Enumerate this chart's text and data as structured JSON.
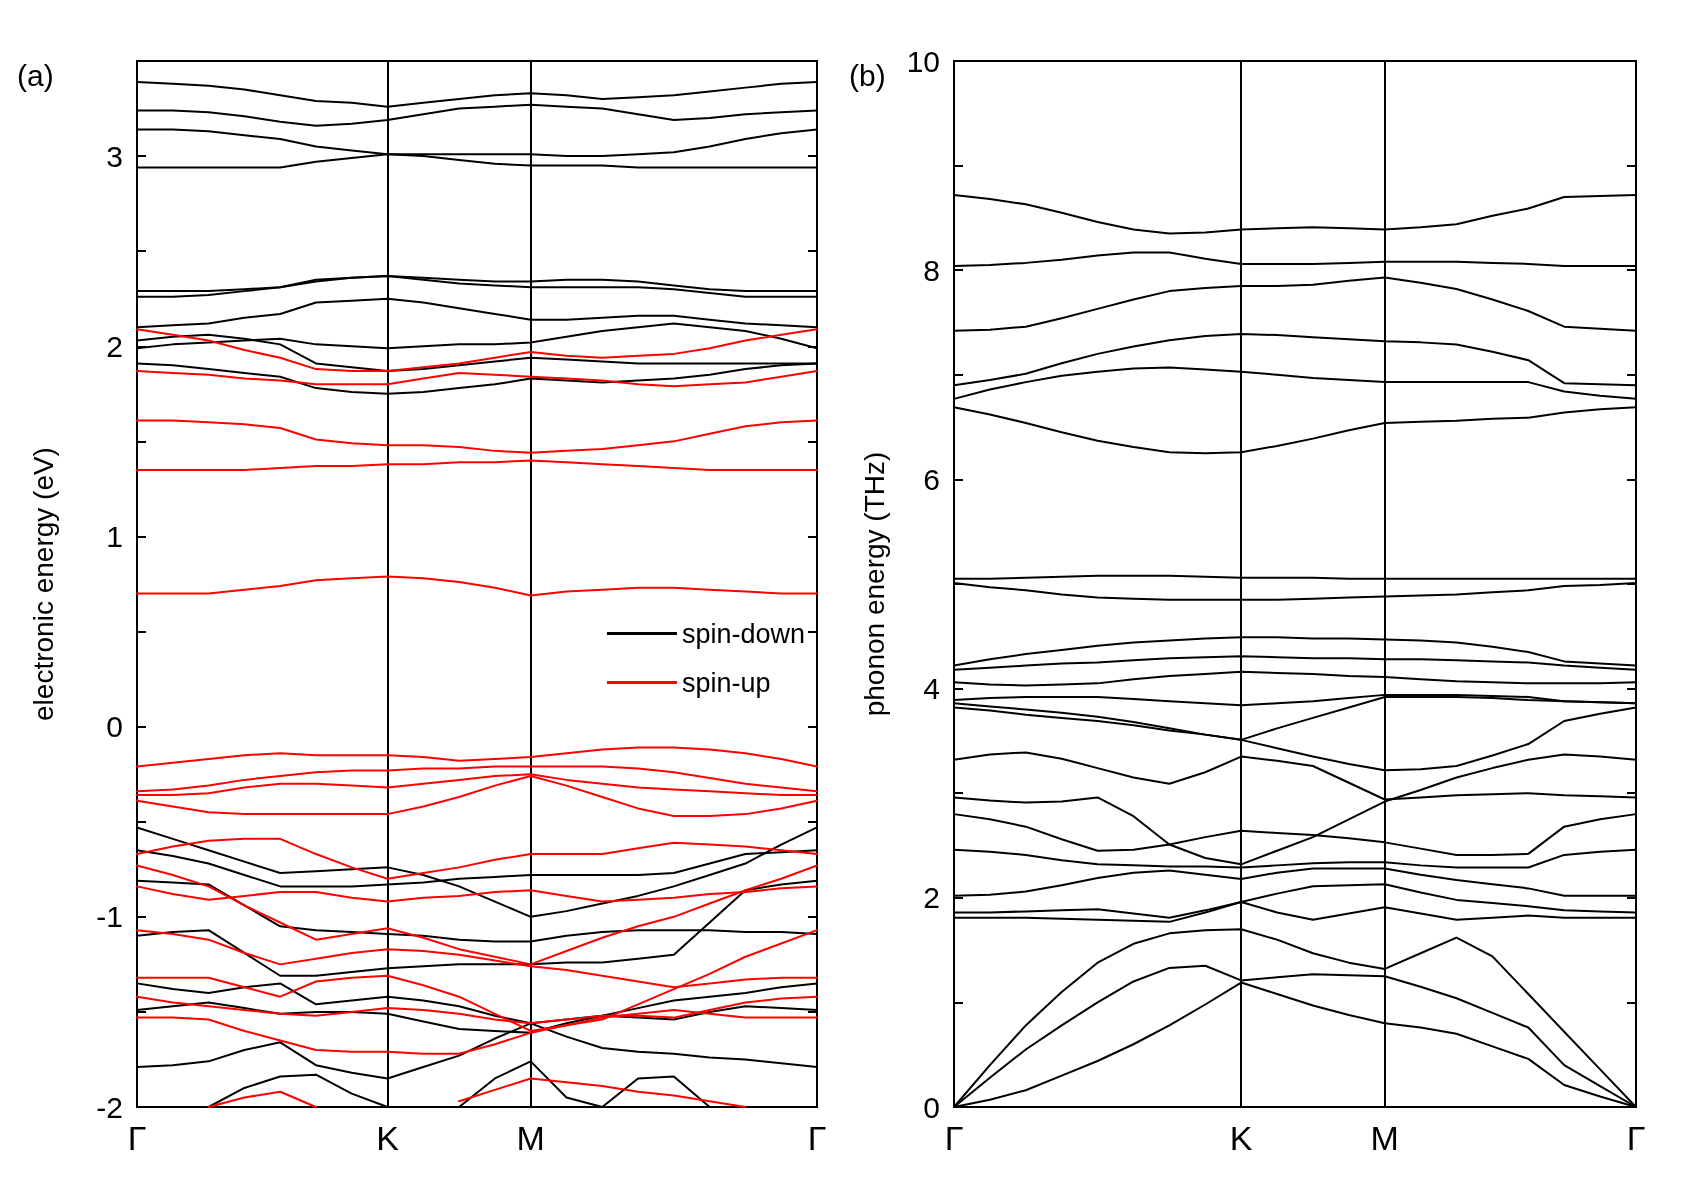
{
  "chart_data": [
    {
      "type": "line",
      "title": "(a)",
      "ylabel": "electronic energy (eV)",
      "categories": [
        "Γ",
        null,
        null,
        null,
        null,
        null,
        null,
        "K",
        null,
        null,
        null,
        "M",
        null,
        null,
        null,
        null,
        null,
        null,
        null,
        "Γ"
      ],
      "ylim": [
        -2,
        3.5
      ],
      "yticks": [
        -2,
        {
          "value": -1.5,
          "label": null
        },
        -1,
        {
          "value": -0.5,
          "label": null
        },
        0,
        {
          "value": 0.5,
          "label": null
        },
        1,
        {
          "value": 1.5,
          "label": null
        },
        2,
        {
          "value": 2.5,
          "label": null
        },
        3
      ],
      "grid": "x",
      "legend": "right",
      "marker": "none",
      "series": [
        {
          "name": "spin-down",
          "color": "#000000",
          "values": [
            3.39,
            3.38,
            3.37,
            3.35,
            3.32,
            3.29,
            3.28,
            3.26,
            3.28,
            3.3,
            3.32,
            3.33,
            3.32,
            3.3,
            3.31,
            3.32,
            3.34,
            3.36,
            3.38,
            3.39
          ]
        },
        {
          "color": "#000000",
          "values": [
            3.24,
            3.24,
            3.23,
            3.21,
            3.18,
            3.16,
            3.17,
            3.19,
            3.22,
            3.25,
            3.26,
            3.27,
            3.26,
            3.25,
            3.22,
            3.19,
            3.2,
            3.22,
            3.23,
            3.24
          ]
        },
        {
          "color": "#000000",
          "values": [
            3.14,
            3.14,
            3.13,
            3.11,
            3.09,
            3.05,
            3.03,
            3.01,
            3.0,
            2.98,
            2.96,
            2.95,
            2.95,
            2.95,
            2.94,
            2.94,
            2.94,
            2.94,
            2.94,
            2.94
          ]
        },
        {
          "color": "#000000",
          "values": [
            2.94,
            2.94,
            2.94,
            2.94,
            2.94,
            2.97,
            2.99,
            3.01,
            3.01,
            3.01,
            3.01,
            3.01,
            3.0,
            3.0,
            3.01,
            3.02,
            3.05,
            3.09,
            3.12,
            3.14
          ]
        },
        {
          "color": "#000000",
          "values": [
            2.29,
            2.29,
            2.29,
            2.3,
            2.31,
            2.34,
            2.36,
            2.37,
            2.36,
            2.35,
            2.34,
            2.34,
            2.35,
            2.35,
            2.34,
            2.32,
            2.3,
            2.29,
            2.29,
            2.29
          ]
        },
        {
          "color": "#000000",
          "values": [
            2.26,
            2.26,
            2.27,
            2.29,
            2.31,
            2.35,
            2.36,
            2.37,
            2.35,
            2.33,
            2.32,
            2.31,
            2.31,
            2.31,
            2.31,
            2.3,
            2.28,
            2.26,
            2.26,
            2.26
          ]
        },
        {
          "color": "#000000",
          "values": [
            2.1,
            2.11,
            2.12,
            2.15,
            2.17,
            2.23,
            2.24,
            2.25,
            2.23,
            2.2,
            2.17,
            2.14,
            2.14,
            2.15,
            2.16,
            2.16,
            2.14,
            2.12,
            2.11,
            2.1
          ]
        },
        {
          "color": "#000000",
          "values": [
            2.03,
            2.05,
            2.06,
            2.04,
            2.01,
            1.91,
            1.89,
            1.87,
            1.88,
            1.9,
            1.92,
            1.94,
            1.93,
            1.92,
            1.91,
            1.91,
            1.91,
            1.91,
            1.91,
            1.91
          ]
        },
        {
          "color": "#000000",
          "values": [
            1.99,
            2.01,
            2.02,
            2.03,
            2.04,
            2.01,
            2.0,
            1.99,
            2.0,
            2.01,
            2.01,
            2.02,
            2.05,
            2.08,
            2.1,
            2.12,
            2.1,
            2.08,
            2.04,
            1.99
          ]
        },
        {
          "color": "#000000",
          "values": [
            1.91,
            1.9,
            1.88,
            1.86,
            1.84,
            1.78,
            1.76,
            1.75,
            1.76,
            1.78,
            1.8,
            1.83,
            1.82,
            1.81,
            1.82,
            1.83,
            1.85,
            1.88,
            1.9,
            1.91
          ]
        },
        {
          "color": "#000000",
          "values": [
            -0.53,
            -0.59,
            -0.65,
            -0.71,
            -0.77,
            -0.76,
            -0.75,
            -0.74,
            -0.78,
            -0.84,
            -0.92,
            -1.0,
            -0.97,
            -0.93,
            -0.89,
            -0.84,
            -0.78,
            -0.72,
            -0.62,
            -0.53
          ]
        },
        {
          "color": "#000000",
          "values": [
            -0.65,
            -0.68,
            -0.72,
            -0.78,
            -0.84,
            -0.84,
            -0.84,
            -0.83,
            -0.82,
            -0.8,
            -0.79,
            -0.78,
            -0.78,
            -0.78,
            -0.78,
            -0.77,
            -0.72,
            -0.67,
            -0.66,
            -0.65
          ]
        },
        {
          "color": "#000000",
          "values": [
            -0.81,
            -0.82,
            -0.83,
            -0.94,
            -1.05,
            -1.07,
            -1.08,
            -1.09,
            -1.1,
            -1.12,
            -1.13,
            -1.13,
            -1.1,
            -1.08,
            -1.07,
            -1.07,
            -1.07,
            -1.08,
            -1.08,
            -1.09
          ]
        },
        {
          "color": "#000000",
          "values": [
            -1.1,
            -1.08,
            -1.07,
            -1.19,
            -1.31,
            -1.31,
            -1.29,
            -1.27,
            -1.26,
            -1.25,
            -1.25,
            -1.25,
            -1.24,
            -1.24,
            -1.22,
            -1.2,
            -1.03,
            -0.86,
            -0.83,
            -0.81
          ]
        },
        {
          "color": "#000000",
          "values": [
            -1.35,
            -1.38,
            -1.4,
            -1.37,
            -1.35,
            -1.46,
            -1.44,
            -1.42,
            -1.44,
            -1.47,
            -1.52,
            -1.56,
            -1.54,
            -1.52,
            -1.48,
            -1.44,
            -1.42,
            -1.4,
            -1.37,
            -1.35
          ]
        },
        {
          "color": "#000000",
          "values": [
            -1.49,
            -1.47,
            -1.45,
            -1.48,
            -1.51,
            -1.5,
            -1.5,
            -1.51,
            -1.55,
            -1.59,
            -1.6,
            -1.61,
            -1.56,
            -1.52,
            -1.53,
            -1.54,
            -1.5,
            -1.47,
            -1.48,
            -1.49
          ]
        },
        {
          "color": "#000000",
          "values": [
            -1.79,
            -1.78,
            -1.76,
            -1.7,
            -1.66,
            -1.78,
            -1.82,
            -1.85,
            -1.79,
            -1.73,
            -1.64,
            -1.56,
            -1.63,
            -1.69,
            -1.71,
            -1.72,
            -1.74,
            -1.75,
            -1.77,
            -1.79
          ]
        },
        {
          "color": "#000000",
          "values": [
            null,
            null,
            -2.0,
            -1.9,
            -1.84,
            -1.83,
            -1.93,
            -2.0,
            null,
            null,
            null,
            null,
            null,
            null,
            null,
            null,
            null,
            null,
            null,
            null
          ]
        },
        {
          "color": "#000000",
          "values": [
            null,
            null,
            null,
            null,
            null,
            null,
            null,
            null,
            null,
            -2.0,
            -1.85,
            -1.76,
            -1.95,
            -2.0,
            -1.85,
            -1.84,
            -2.0,
            null,
            null,
            null
          ]
        },
        {
          "name": "spin-up",
          "color": "#ff0000",
          "values": [
            2.09,
            2.06,
            2.03,
            1.98,
            1.94,
            1.88,
            1.87,
            1.87,
            1.89,
            1.91,
            1.94,
            1.97,
            1.95,
            1.94,
            1.95,
            1.96,
            1.99,
            2.03,
            2.06,
            2.09
          ]
        },
        {
          "color": "#ff0000",
          "values": [
            1.87,
            1.86,
            1.85,
            1.83,
            1.82,
            1.8,
            1.8,
            1.8,
            1.83,
            1.86,
            1.85,
            1.84,
            1.83,
            1.82,
            1.8,
            1.79,
            1.8,
            1.81,
            1.84,
            1.87
          ]
        },
        {
          "color": "#ff0000",
          "values": [
            1.61,
            1.61,
            1.6,
            1.59,
            1.57,
            1.51,
            1.49,
            1.48,
            1.48,
            1.47,
            1.45,
            1.44,
            1.45,
            1.46,
            1.48,
            1.5,
            1.54,
            1.58,
            1.6,
            1.61
          ]
        },
        {
          "color": "#ff0000",
          "values": [
            1.35,
            1.35,
            1.35,
            1.35,
            1.36,
            1.37,
            1.37,
            1.38,
            1.38,
            1.39,
            1.39,
            1.4,
            1.39,
            1.38,
            1.37,
            1.36,
            1.35,
            1.35,
            1.35,
            1.35
          ]
        },
        {
          "color": "#ff0000",
          "values": [
            0.7,
            0.7,
            0.7,
            0.72,
            0.74,
            0.77,
            0.78,
            0.79,
            0.78,
            0.76,
            0.73,
            0.69,
            0.71,
            0.72,
            0.73,
            0.73,
            0.72,
            0.71,
            0.7,
            0.7
          ]
        },
        {
          "color": "#ff0000",
          "values": [
            -0.21,
            -0.19,
            -0.17,
            -0.15,
            -0.14,
            -0.15,
            -0.15,
            -0.15,
            -0.16,
            -0.18,
            -0.17,
            -0.16,
            -0.14,
            -0.12,
            -0.11,
            -0.11,
            -0.12,
            -0.14,
            -0.17,
            -0.21
          ]
        },
        {
          "color": "#ff0000",
          "values": [
            -0.34,
            -0.33,
            -0.31,
            -0.28,
            -0.26,
            -0.24,
            -0.23,
            -0.23,
            -0.22,
            -0.22,
            -0.21,
            -0.21,
            -0.21,
            -0.21,
            -0.22,
            -0.24,
            -0.27,
            -0.3,
            -0.32,
            -0.34
          ]
        },
        {
          "color": "#ff0000",
          "values": [
            -0.36,
            -0.36,
            -0.35,
            -0.32,
            -0.3,
            -0.3,
            -0.31,
            -0.32,
            -0.3,
            -0.28,
            -0.26,
            -0.25,
            -0.28,
            -0.3,
            -0.32,
            -0.33,
            -0.34,
            -0.35,
            -0.36,
            -0.36
          ]
        },
        {
          "color": "#ff0000",
          "values": [
            -0.39,
            -0.42,
            -0.45,
            -0.46,
            -0.46,
            -0.46,
            -0.46,
            -0.46,
            -0.42,
            -0.37,
            -0.31,
            -0.26,
            -0.31,
            -0.37,
            -0.43,
            -0.47,
            -0.47,
            -0.46,
            -0.43,
            -0.39
          ]
        },
        {
          "color": "#ff0000",
          "values": [
            -0.67,
            -0.63,
            -0.6,
            -0.59,
            -0.59,
            -0.67,
            -0.74,
            -0.8,
            -0.77,
            -0.74,
            -0.7,
            -0.67,
            -0.67,
            -0.67,
            -0.64,
            -0.61,
            -0.62,
            -0.63,
            -0.65,
            -0.67
          ]
        },
        {
          "color": "#ff0000",
          "values": [
            -0.73,
            -0.78,
            -0.84,
            -0.94,
            -1.03,
            -1.12,
            -1.09,
            -1.06,
            -1.11,
            -1.17,
            -1.21,
            -1.25,
            -1.18,
            -1.11,
            -1.05,
            -1.0,
            -0.93,
            -0.86,
            -0.8,
            -0.73
          ]
        },
        {
          "color": "#ff0000",
          "values": [
            -0.84,
            -0.88,
            -0.91,
            -0.89,
            -0.87,
            -0.87,
            -0.9,
            -0.92,
            -0.9,
            -0.89,
            -0.87,
            -0.86,
            -0.89,
            -0.92,
            -0.91,
            -0.9,
            -0.88,
            -0.87,
            -0.85,
            -0.84
          ]
        },
        {
          "color": "#ff0000",
          "values": [
            -1.07,
            -1.09,
            -1.12,
            -1.19,
            -1.25,
            -1.22,
            -1.19,
            -1.17,
            -1.18,
            -1.2,
            -1.23,
            -1.26,
            -1.28,
            -1.31,
            -1.34,
            -1.37,
            -1.35,
            -1.33,
            -1.32,
            -1.32
          ]
        },
        {
          "color": "#ff0000",
          "values": [
            -1.32,
            -1.32,
            -1.32,
            -1.37,
            -1.42,
            -1.34,
            -1.32,
            -1.31,
            -1.36,
            -1.42,
            -1.51,
            -1.6,
            -1.57,
            -1.54,
            -1.46,
            -1.38,
            -1.3,
            -1.21,
            -1.14,
            -1.07
          ]
        },
        {
          "color": "#ff0000",
          "values": [
            -1.42,
            -1.45,
            -1.47,
            -1.49,
            -1.51,
            -1.52,
            -1.5,
            -1.48,
            -1.49,
            -1.51,
            -1.54,
            -1.56,
            -1.54,
            -1.52,
            -1.52,
            -1.53,
            -1.49,
            -1.45,
            -1.43,
            -1.42
          ]
        },
        {
          "color": "#ff0000",
          "values": [
            -1.53,
            -1.53,
            -1.54,
            -1.6,
            -1.65,
            -1.7,
            -1.71,
            -1.71,
            -1.72,
            -1.72,
            -1.67,
            -1.61,
            -1.57,
            -1.53,
            -1.51,
            -1.49,
            -1.51,
            -1.53,
            -1.53,
            -1.53
          ]
        },
        {
          "color": "#ff0000",
          "values": [
            null,
            null,
            null,
            null,
            null,
            null,
            null,
            null,
            null,
            -1.97,
            -1.91,
            -1.85,
            -1.87,
            -1.89,
            -1.92,
            -1.94,
            -1.97,
            -2.0,
            null,
            null
          ]
        },
        {
          "color": "#ff0000",
          "values": [
            null,
            null,
            -2.0,
            -1.95,
            -1.92,
            -2.0,
            null,
            null,
            null,
            null,
            null,
            null,
            null,
            null,
            null,
            null,
            null,
            null,
            null,
            null
          ]
        }
      ]
    },
    {
      "type": "line",
      "title": "(b)",
      "ylabel": "phonon energy (THz)",
      "categories": [
        "Γ",
        null,
        null,
        null,
        null,
        null,
        null,
        null,
        "K",
        null,
        null,
        null,
        "M",
        null,
        null,
        null,
        null,
        null,
        null,
        "Γ"
      ],
      "ylim": [
        0,
        10
      ],
      "yticks": [
        0,
        {
          "value": 1,
          "label": null
        },
        2,
        {
          "value": 3,
          "label": null
        },
        4,
        {
          "value": 5,
          "label": null
        },
        6,
        {
          "value": 7,
          "label": null
        },
        8,
        {
          "value": 9,
          "label": null
        },
        10
      ],
      "grid": "x",
      "marker": "none",
      "series": [
        {
          "color": "#000000",
          "values": [
            8.72,
            8.68,
            8.63,
            8.55,
            8.46,
            8.39,
            8.35,
            8.36,
            8.39,
            8.4,
            8.41,
            8.4,
            8.39,
            8.41,
            8.44,
            8.52,
            8.59,
            8.7,
            8.71,
            8.72
          ]
        },
        {
          "color": "#000000",
          "values": [
            8.04,
            8.05,
            8.07,
            8.1,
            8.14,
            8.17,
            8.17,
            8.11,
            8.06,
            8.06,
            8.06,
            8.07,
            8.08,
            8.08,
            8.08,
            8.07,
            8.06,
            8.04,
            8.04,
            8.04
          ]
        },
        {
          "color": "#000000",
          "values": [
            7.42,
            7.43,
            7.46,
            7.54,
            7.63,
            7.72,
            7.8,
            7.83,
            7.85,
            7.85,
            7.86,
            7.9,
            7.93,
            7.88,
            7.82,
            7.72,
            7.61,
            7.46,
            7.44,
            7.42
          ]
        },
        {
          "color": "#000000",
          "values": [
            6.9,
            6.95,
            7.01,
            7.11,
            7.2,
            7.27,
            7.33,
            7.37,
            7.39,
            7.38,
            7.36,
            7.34,
            7.32,
            7.31,
            7.29,
            7.22,
            7.14,
            6.92,
            6.91,
            6.9
          ]
        },
        {
          "color": "#000000",
          "values": [
            6.77,
            6.86,
            6.93,
            6.99,
            7.03,
            7.06,
            7.07,
            7.05,
            7.03,
            7.0,
            6.97,
            6.95,
            6.93,
            6.93,
            6.93,
            6.93,
            6.93,
            6.84,
            6.8,
            6.77
          ]
        },
        {
          "color": "#000000",
          "values": [
            6.69,
            6.62,
            6.54,
            6.45,
            6.37,
            6.31,
            6.26,
            6.25,
            6.26,
            6.32,
            6.39,
            6.47,
            6.54,
            6.55,
            6.56,
            6.58,
            6.59,
            6.64,
            6.67,
            6.69
          ]
        },
        {
          "color": "#000000",
          "values": [
            5.05,
            5.05,
            5.06,
            5.07,
            5.08,
            5.08,
            5.08,
            5.07,
            5.06,
            5.06,
            5.06,
            5.05,
            5.05,
            5.05,
            5.05,
            5.05,
            5.05,
            5.05,
            5.05,
            5.05
          ]
        },
        {
          "color": "#000000",
          "values": [
            5.01,
            4.97,
            4.94,
            4.9,
            4.87,
            4.86,
            4.85,
            4.85,
            4.85,
            4.85,
            4.86,
            4.87,
            4.88,
            4.89,
            4.9,
            4.92,
            4.94,
            4.98,
            4.99,
            5.01
          ]
        },
        {
          "color": "#000000",
          "values": [
            4.22,
            4.28,
            4.33,
            4.37,
            4.41,
            4.44,
            4.46,
            4.48,
            4.49,
            4.49,
            4.48,
            4.48,
            4.47,
            4.46,
            4.44,
            4.4,
            4.35,
            4.26,
            4.24,
            4.22
          ]
        },
        {
          "color": "#000000",
          "values": [
            4.18,
            4.2,
            4.22,
            4.24,
            4.25,
            4.27,
            4.29,
            4.3,
            4.31,
            4.3,
            4.29,
            4.29,
            4.28,
            4.28,
            4.27,
            4.26,
            4.25,
            4.22,
            4.2,
            4.18
          ]
        },
        {
          "color": "#000000",
          "values": [
            4.06,
            4.04,
            4.03,
            4.04,
            4.05,
            4.09,
            4.12,
            4.14,
            4.16,
            4.15,
            4.14,
            4.12,
            4.11,
            4.09,
            4.07,
            4.06,
            4.05,
            4.05,
            4.05,
            4.06
          ]
        },
        {
          "color": "#000000",
          "values": [
            3.89,
            3.91,
            3.92,
            3.92,
            3.92,
            3.9,
            3.88,
            3.86,
            3.84,
            3.86,
            3.88,
            3.91,
            3.94,
            3.94,
            3.94,
            3.93,
            3.92,
            3.88,
            3.87,
            3.86
          ]
        },
        {
          "color": "#000000",
          "values": [
            3.86,
            3.83,
            3.8,
            3.77,
            3.73,
            3.68,
            3.62,
            3.56,
            3.51,
            3.62,
            3.72,
            3.82,
            3.92,
            3.92,
            3.92,
            3.91,
            3.89,
            3.88,
            3.87,
            3.86
          ]
        },
        {
          "color": "#000000",
          "values": [
            3.82,
            3.79,
            3.75,
            3.72,
            3.69,
            3.65,
            3.6,
            3.56,
            3.51,
            3.43,
            3.35,
            3.28,
            3.22,
            3.23,
            3.26,
            3.36,
            3.47,
            3.69,
            3.76,
            3.82
          ]
        },
        {
          "color": "#000000",
          "values": [
            3.32,
            3.37,
            3.39,
            3.33,
            3.24,
            3.15,
            3.09,
            3.2,
            3.35,
            3.31,
            3.26,
            3.1,
            2.94,
            2.96,
            2.98,
            2.99,
            3.0,
            2.98,
            2.97,
            2.96
          ]
        },
        {
          "color": "#000000",
          "values": [
            2.96,
            2.93,
            2.91,
            2.92,
            2.96,
            2.78,
            2.51,
            2.38,
            2.32,
            2.45,
            2.58,
            2.75,
            2.92,
            3.03,
            3.15,
            3.24,
            3.32,
            3.37,
            3.35,
            3.32
          ]
        },
        {
          "color": "#000000",
          "values": [
            2.8,
            2.75,
            2.68,
            2.56,
            2.45,
            2.46,
            2.51,
            2.58,
            2.64,
            2.62,
            2.6,
            2.57,
            2.53,
            2.47,
            2.41,
            2.41,
            2.42,
            2.68,
            2.75,
            2.8
          ]
        },
        {
          "color": "#000000",
          "values": [
            2.46,
            2.44,
            2.41,
            2.36,
            2.32,
            2.31,
            2.3,
            2.3,
            2.29,
            2.31,
            2.33,
            2.34,
            2.34,
            2.31,
            2.29,
            2.29,
            2.29,
            2.41,
            2.44,
            2.46
          ]
        },
        {
          "color": "#000000",
          "values": [
            2.02,
            2.03,
            2.06,
            2.12,
            2.19,
            2.24,
            2.26,
            2.22,
            2.18,
            2.24,
            2.28,
            2.28,
            2.28,
            2.22,
            2.17,
            2.13,
            2.09,
            2.02,
            2.02,
            2.02
          ]
        },
        {
          "color": "#000000",
          "values": [
            1.86,
            1.86,
            1.87,
            1.88,
            1.89,
            1.85,
            1.81,
            1.88,
            1.96,
            2.04,
            2.11,
            2.12,
            2.13,
            2.05,
            1.98,
            1.95,
            1.92,
            1.88,
            1.87,
            1.86
          ]
        },
        {
          "color": "#000000",
          "values": [
            1.81,
            1.81,
            1.81,
            1.8,
            1.79,
            1.78,
            1.77,
            1.86,
            1.96,
            1.86,
            1.79,
            1.85,
            1.91,
            1.85,
            1.79,
            1.81,
            1.83,
            1.81,
            1.81,
            1.81
          ]
        },
        {
          "color": "#000000",
          "values": [
            0,
            0.4,
            0.78,
            1.1,
            1.38,
            1.56,
            1.66,
            1.69,
            1.7,
            1.6,
            1.47,
            1.38,
            1.32,
            1.47,
            1.62,
            1.44,
            1.08,
            0.72,
            0.36,
            0
          ]
        },
        {
          "color": "#000000",
          "values": [
            0,
            0.28,
            0.55,
            0.78,
            1.0,
            1.2,
            1.33,
            1.35,
            1.21,
            1.24,
            1.27,
            1.26,
            1.25,
            1.15,
            1.04,
            0.9,
            0.76,
            0.4,
            0.2,
            0
          ]
        },
        {
          "color": "#000000",
          "values": [
            0,
            0.07,
            0.16,
            0.3,
            0.44,
            0.6,
            0.78,
            0.98,
            1.19,
            1.08,
            0.97,
            0.88,
            0.8,
            0.76,
            0.7,
            0.58,
            0.46,
            0.21,
            0.1,
            0
          ]
        }
      ]
    }
  ]
}
